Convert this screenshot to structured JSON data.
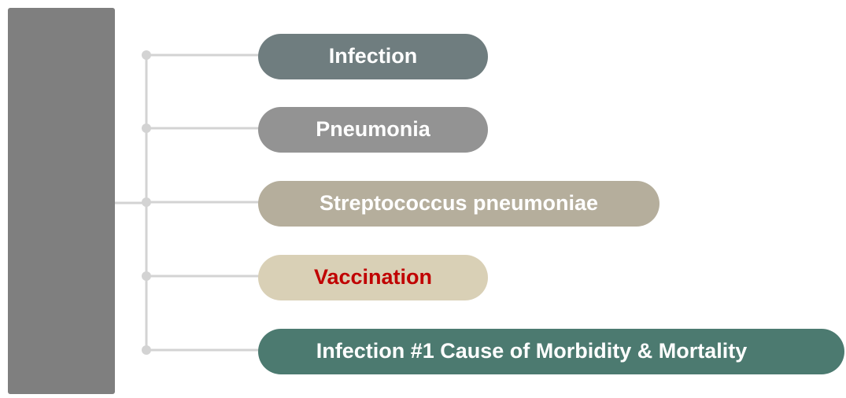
{
  "nodes": [
    {
      "label": "Infection"
    },
    {
      "label": "Pneumonia"
    },
    {
      "label": "Streptococcus pneumoniae"
    },
    {
      "label": "Vaccination"
    },
    {
      "label": "Infection #1 Cause of Morbidity & Mortality"
    }
  ]
}
